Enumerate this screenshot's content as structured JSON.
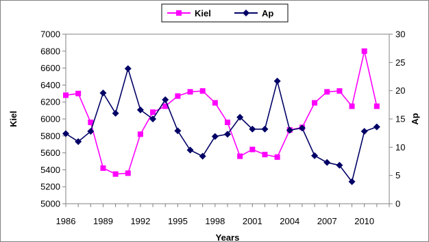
{
  "chart_data": {
    "type": "line",
    "xlabel": "Years",
    "x_tick_labels": [
      "1986",
      "1989",
      "1992",
      "1995",
      "1998",
      "2001",
      "2004",
      "2007",
      "2010"
    ],
    "x_ticks": [
      1986,
      1989,
      1992,
      1995,
      1998,
      2001,
      2004,
      2007,
      2010
    ],
    "xlim": [
      1986,
      2012
    ],
    "y_left": {
      "label": "Kiel",
      "lim": [
        5000,
        7000
      ],
      "ticks": [
        5000,
        5200,
        5400,
        5600,
        5800,
        6000,
        6200,
        6400,
        6600,
        6800,
        7000
      ],
      "tick_labels": [
        "5000",
        "5200",
        "5400",
        "5600",
        "5800",
        "6000",
        "6200",
        "6400",
        "6600",
        "6800",
        "7000"
      ]
    },
    "y_right": {
      "label": "Ap",
      "lim": [
        0,
        30
      ],
      "ticks": [
        0,
        5,
        10,
        15,
        20,
        25,
        30
      ],
      "tick_labels": [
        "0",
        "5",
        "10",
        "15",
        "20",
        "25",
        "30"
      ]
    },
    "x": [
      1986,
      1987,
      1988,
      1989,
      1990,
      1991,
      1992,
      1993,
      1994,
      1995,
      1996,
      1997,
      1998,
      1999,
      2000,
      2001,
      2002,
      2003,
      2004,
      2005,
      2006,
      2007,
      2008,
      2009,
      2010,
      2011
    ],
    "series": [
      {
        "name": "Kiel",
        "axis": "left",
        "color": "#ff00ff",
        "marker": "square",
        "values": [
          6280,
          6300,
          5960,
          5420,
          5350,
          5360,
          5820,
          6080,
          6150,
          6270,
          6320,
          6330,
          6190,
          5960,
          5560,
          5640,
          5580,
          5550,
          5870,
          5900,
          6190,
          6320,
          6330,
          6150,
          6800,
          6150
        ]
      },
      {
        "name": "Ap",
        "axis": "right",
        "color": "#000066",
        "marker": "diamond",
        "values": [
          12.4,
          11.0,
          12.8,
          19.6,
          16.0,
          23.9,
          16.6,
          15.0,
          18.4,
          12.9,
          9.5,
          8.4,
          11.9,
          12.3,
          15.3,
          13.2,
          13.2,
          21.7,
          13.0,
          13.4,
          8.5,
          7.3,
          6.8,
          3.9,
          12.8,
          13.6
        ]
      }
    ],
    "legend": {
      "position": "top-center"
    },
    "grid": false
  }
}
